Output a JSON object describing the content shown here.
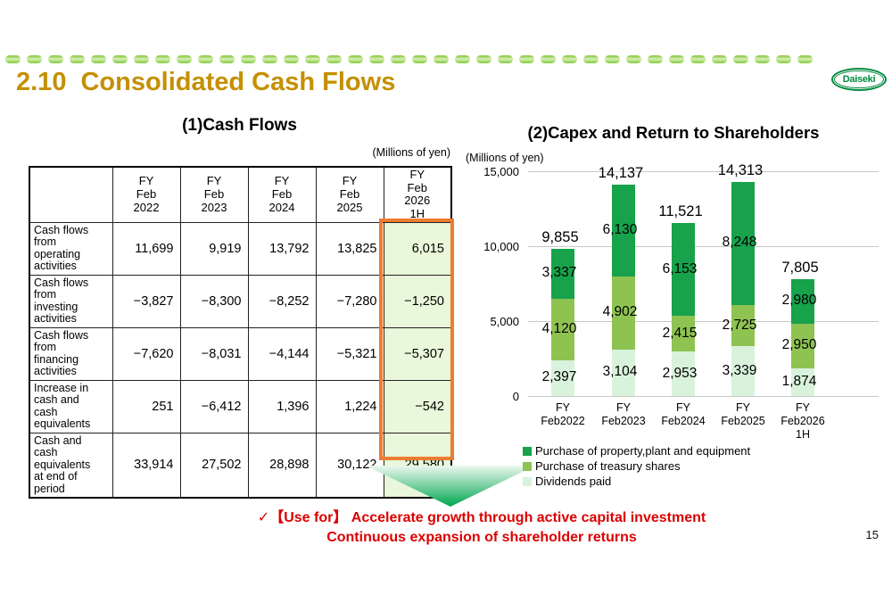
{
  "slide": {
    "title_number": "2.10",
    "title_text": "Consolidated Cash Flows",
    "logo_text": "Daiseki",
    "page_number": "15"
  },
  "colors": {
    "title_gold": "#c49000",
    "divider_green": "#8fcf4e",
    "highlight_border_orange": "#ed7d31",
    "highlight_cell_green": "#e9f7da",
    "callout_red": "#dc0000",
    "logo_green": "#008a3e"
  },
  "cash_flows": {
    "title": "(1)Cash Flows",
    "unit_note": "(Millions of yen)",
    "columns": [
      "FY\nFeb\n2022",
      "FY\nFeb\n2023",
      "FY\nFeb\n2024",
      "FY\nFeb\n2025",
      "FY\nFeb\n2026\n1H"
    ],
    "rows": [
      {
        "label": "Cash flows\nfrom\noperating\nactivities",
        "values": [
          "11,699",
          "9,919",
          "13,792",
          "13,825",
          "6,015"
        ]
      },
      {
        "label": "Cash flows\nfrom\ninvesting\nactivities",
        "values": [
          "−3,827",
          "−8,300",
          "−8,252",
          "−7,280",
          "−1,250"
        ]
      },
      {
        "label": "Cash flows\nfrom\nfinancing\nactivities",
        "values": [
          "−7,620",
          "−8,031",
          "−4,144",
          "−5,321",
          "−5,307"
        ]
      },
      {
        "label": "Increase in\ncash and\ncash\nequivalents",
        "values": [
          "251",
          "−6,412",
          "1,396",
          "1,224",
          "−542"
        ]
      },
      {
        "label": "Cash and\ncash\nequivalents\nat end of\nperiod",
        "values": [
          "33,914",
          "27,502",
          "28,898",
          "30,122",
          "29,580"
        ]
      }
    ]
  },
  "chart_data": {
    "type": "bar",
    "stacked": true,
    "title": "(2)Capex and Return to Shareholders",
    "unit_note": "(Millions of yen)",
    "categories": [
      "FY\nFeb2022",
      "FY\nFeb2023",
      "FY\nFeb2024",
      "FY\nFeb2025",
      "FY\nFeb2026\n1H"
    ],
    "series": [
      {
        "name": "Dividends paid",
        "color": "#d9f2dc",
        "values": [
          2397,
          3104,
          2953,
          3339,
          1874
        ]
      },
      {
        "name": "Purchase of treasury shares",
        "color": "#8ec351",
        "values": [
          4120,
          4902,
          2415,
          2725,
          2950
        ]
      },
      {
        "name": "Purchase of property,plant and equipment",
        "color": "#17a24b",
        "values": [
          3337,
          6130,
          6153,
          8248,
          2980
        ]
      }
    ],
    "totals": [
      9855,
      14137,
      11521,
      14313,
      7805
    ],
    "y_ticks": [
      0,
      5000,
      10000,
      15000
    ],
    "ylim": [
      0,
      15000
    ],
    "grid": true,
    "legend_position": "bottom",
    "legend_order": [
      "Purchase of property,plant and equipment",
      "Purchase of treasury shares",
      "Dividends paid"
    ]
  },
  "callout": {
    "line1": "✓【Use for】 Accelerate growth through active capital investment",
    "line2": "Continuous expansion of shareholder returns"
  }
}
